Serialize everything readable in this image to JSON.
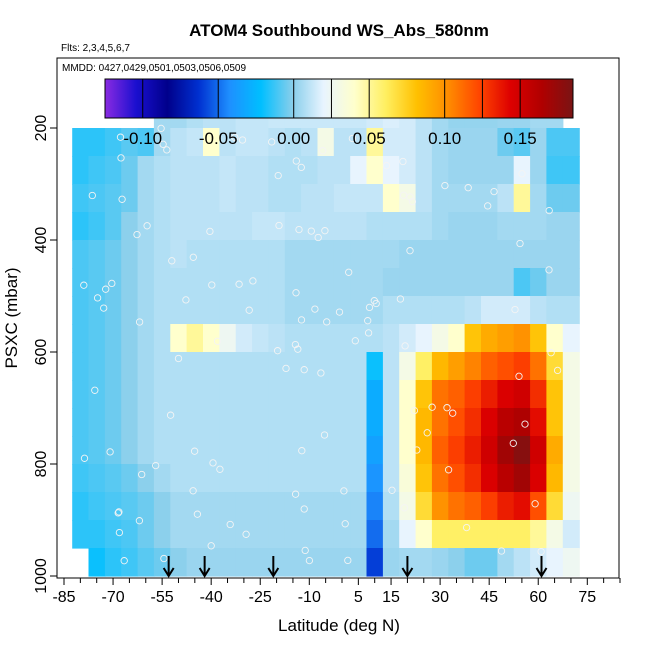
{
  "chart_data": {
    "type": "heatmap",
    "title": "ATOM4 Southbound WS_Abs_580nm",
    "subtitle_flights": "Flts: 2,3,4,5,6,7",
    "subtitle_dates": "MMDD: 0427,0429,0501,0503,0506,0509",
    "xlabel": "Latitude (deg N)",
    "ylabel": "PSXC (mbar)",
    "xlim": [
      -85,
      85
    ],
    "ylim": [
      1000,
      100
    ],
    "x_ticks": [
      -85,
      -70,
      -55,
      -40,
      -25,
      -10,
      5,
      15,
      30,
      45,
      60,
      75
    ],
    "x_tick_labels": [
      "-85",
      "-70",
      "-55",
      "-40",
      "-25",
      "-10",
      "5",
      "15",
      "30",
      "45",
      "60",
      "75"
    ],
    "x_minor_ticks": [
      -80,
      -75,
      -65,
      -60,
      -50,
      -45,
      -35,
      -30,
      -20,
      -15,
      -5,
      0,
      10,
      20,
      25,
      35,
      40,
      50,
      55,
      65,
      70,
      80,
      85
    ],
    "y_ticks": [
      200,
      400,
      600,
      800,
      1000
    ],
    "y_tick_labels": [
      "200",
      "400",
      "600",
      "800",
      "1000"
    ],
    "colorbar": {
      "range": [
        -0.125,
        0.185
      ],
      "ticks": [
        -0.1,
        -0.05,
        0.0,
        0.05,
        0.1,
        0.15
      ],
      "tick_labels": [
        "-0.10",
        "-0.05",
        "0.00",
        "0.05",
        "0.10",
        "0.15"
      ],
      "colors": [
        "#8a2be2",
        "#1a0fcf",
        "#00008b",
        "#0030d0",
        "#1e90ff",
        "#00bfff",
        "#87ceeb",
        "#e8f4ff",
        "#ffffcc",
        "#ffef60",
        "#ffc000",
        "#ff8c00",
        "#ff4500",
        "#dd0000",
        "#b00000",
        "#7a1414"
      ]
    },
    "ascent_arrows_lat": [
      -53,
      -42,
      -21,
      20,
      61
    ],
    "lat_bins": [
      -80,
      -75,
      -70,
      -65,
      -60,
      -55,
      -50,
      -45,
      -40,
      -35,
      -30,
      -25,
      -20,
      -15,
      -10,
      -5,
      0,
      5,
      10,
      15,
      20,
      25,
      30,
      35,
      40,
      45,
      50,
      55,
      60,
      65,
      70
    ],
    "pressure_bins": [
      175,
      225,
      275,
      325,
      375,
      425,
      475,
      525,
      575,
      625,
      675,
      725,
      775,
      825,
      875,
      925,
      975
    ],
    "values": [
      [
        null,
        null,
        null,
        null,
        null,
        0.005,
        0.005,
        0.008,
        0.01,
        0.01,
        0.012,
        0.012,
        0.013,
        0.013,
        0.013,
        0.013,
        0.013,
        0.013,
        0.015,
        0.017,
        0.015,
        0.01,
        0.005,
        0.002,
        0.002,
        0.002,
        0.003,
        0.003,
        0.005,
        0.005,
        null
      ],
      [
        -0.015,
        -0.015,
        -0.012,
        -0.008,
        -0.01,
        0.005,
        0.01,
        0.012,
        0.04,
        0.01,
        0.012,
        0.012,
        0.01,
        0.008,
        0.01,
        0.03,
        0.01,
        0.01,
        0.05,
        0.015,
        0.015,
        0.01,
        0.005,
        0.003,
        0.003,
        0.003,
        -0.005,
        -0.008,
        0.003,
        -0.01,
        -0.01
      ],
      [
        -0.015,
        -0.012,
        -0.01,
        -0.005,
        0.005,
        0.008,
        0.01,
        0.01,
        0.01,
        0.012,
        0.01,
        0.01,
        0.008,
        0.008,
        0.008,
        0.01,
        0.01,
        0.02,
        0.04,
        0.02,
        0.015,
        0.01,
        0.005,
        0.003,
        0.003,
        0.003,
        0.003,
        0.02,
        0.003,
        -0.012,
        -0.012
      ],
      [
        -0.012,
        -0.01,
        -0.008,
        -0.005,
        0.005,
        0.008,
        0.01,
        0.01,
        0.01,
        0.012,
        0.01,
        0.01,
        0.008,
        0.008,
        0.01,
        0.01,
        0.012,
        0.012,
        0.012,
        0.04,
        0.03,
        0.01,
        0.005,
        0.005,
        0.005,
        0.005,
        0.01,
        0.05,
        0.005,
        -0.005,
        -0.005
      ],
      [
        -0.015,
        -0.012,
        -0.008,
        0.0,
        0.005,
        0.008,
        0.01,
        0.01,
        0.01,
        0.01,
        0.01,
        0.012,
        0.012,
        0.01,
        0.01,
        0.01,
        0.01,
        0.01,
        0.008,
        0.008,
        0.008,
        0.008,
        0.005,
        0.003,
        0.003,
        0.003,
        0.005,
        0.005,
        0.005,
        0.003,
        0.003
      ],
      [
        -0.01,
        -0.008,
        -0.005,
        0.0,
        0.005,
        0.008,
        0.01,
        0.008,
        0.008,
        0.008,
        0.008,
        0.008,
        0.008,
        0.005,
        0.005,
        0.005,
        0.005,
        0.005,
        0.005,
        0.005,
        0.003,
        0.003,
        0.003,
        0.003,
        0.003,
        0.003,
        0.003,
        0.003,
        0.003,
        0.003,
        0.003
      ],
      [
        -0.01,
        -0.008,
        -0.005,
        0.0,
        0.005,
        0.008,
        0.008,
        0.008,
        0.008,
        0.008,
        0.008,
        0.008,
        0.008,
        0.005,
        0.005,
        0.005,
        0.005,
        0.005,
        0.005,
        0.003,
        0.003,
        0.003,
        0.003,
        0.003,
        0.003,
        0.003,
        0.003,
        -0.01,
        -0.005,
        0.003,
        0.003
      ],
      [
        -0.01,
        -0.008,
        -0.005,
        0.0,
        0.005,
        0.008,
        0.008,
        0.008,
        0.008,
        0.008,
        0.008,
        0.008,
        0.008,
        0.005,
        0.005,
        0.005,
        0.005,
        0.005,
        0.005,
        0.008,
        0.008,
        0.008,
        0.008,
        0.008,
        0.01,
        0.015,
        0.015,
        0.015,
        0.01,
        0.008,
        0.008
      ],
      [
        -0.01,
        -0.008,
        -0.005,
        0.0,
        0.005,
        0.008,
        0.04,
        0.05,
        0.04,
        0.025,
        0.015,
        0.012,
        0.01,
        0.008,
        0.008,
        0.008,
        0.008,
        0.008,
        0.008,
        0.01,
        0.015,
        0.02,
        0.03,
        0.04,
        0.08,
        0.09,
        0.095,
        0.1,
        0.08,
        0.04,
        0.02
      ],
      [
        -0.01,
        -0.008,
        -0.005,
        0.0,
        0.005,
        0.008,
        0.008,
        0.008,
        0.008,
        0.008,
        0.008,
        0.008,
        0.008,
        0.008,
        0.008,
        0.008,
        0.008,
        0.008,
        -0.02,
        0.01,
        0.03,
        0.06,
        0.085,
        0.095,
        0.105,
        0.115,
        0.12,
        0.125,
        0.11,
        0.07,
        0.03
      ],
      [
        -0.01,
        -0.008,
        -0.005,
        0.0,
        0.005,
        0.008,
        0.008,
        0.008,
        0.008,
        0.008,
        0.008,
        0.008,
        0.008,
        0.008,
        0.008,
        0.008,
        0.008,
        0.008,
        -0.03,
        0.01,
        0.04,
        0.08,
        0.11,
        0.115,
        0.125,
        0.135,
        0.145,
        0.15,
        0.13,
        0.08,
        0.03
      ],
      [
        -0.01,
        -0.008,
        -0.005,
        0.0,
        0.005,
        0.008,
        0.008,
        0.008,
        0.008,
        0.008,
        0.008,
        0.008,
        0.008,
        0.008,
        0.008,
        0.008,
        0.008,
        0.008,
        -0.03,
        0.01,
        0.04,
        0.085,
        0.11,
        0.12,
        0.13,
        0.145,
        0.16,
        0.165,
        0.14,
        0.08,
        0.03
      ],
      [
        -0.01,
        -0.008,
        -0.005,
        0.0,
        0.005,
        0.008,
        0.008,
        0.008,
        0.008,
        0.008,
        0.008,
        0.008,
        0.008,
        0.008,
        0.008,
        0.008,
        0.008,
        0.008,
        -0.035,
        0.01,
        0.04,
        0.085,
        0.115,
        0.125,
        0.135,
        0.15,
        0.17,
        0.18,
        0.15,
        0.09,
        0.03
      ],
      [
        -0.012,
        -0.01,
        -0.008,
        -0.005,
        0.0,
        0.005,
        0.008,
        0.008,
        0.008,
        0.008,
        0.008,
        0.008,
        0.008,
        0.008,
        0.008,
        0.008,
        0.008,
        0.008,
        -0.04,
        0.01,
        0.035,
        0.08,
        0.11,
        0.12,
        0.13,
        0.145,
        0.16,
        0.17,
        0.145,
        0.085,
        0.03
      ],
      [
        -0.015,
        -0.012,
        -0.01,
        -0.008,
        -0.005,
        0.0,
        0.005,
        0.005,
        0.005,
        0.005,
        0.005,
        0.005,
        0.005,
        0.005,
        0.005,
        0.005,
        0.005,
        0.005,
        -0.045,
        0.008,
        0.03,
        0.07,
        0.1,
        0.11,
        0.115,
        0.125,
        0.135,
        0.14,
        0.12,
        0.07,
        0.025
      ],
      [
        -0.015,
        -0.015,
        -0.012,
        -0.01,
        -0.005,
        0.0,
        0.005,
        0.005,
        0.005,
        0.005,
        0.005,
        0.005,
        0.005,
        0.005,
        0.005,
        0.005,
        0.005,
        0.005,
        -0.05,
        0.005,
        0.02,
        0.04,
        0.06,
        0.06,
        0.06,
        0.06,
        0.06,
        0.06,
        0.05,
        0.03,
        0.015
      ],
      [
        null,
        -0.02,
        -0.015,
        -0.012,
        -0.008,
        -0.005,
        0.0,
        0.003,
        0.003,
        0.003,
        0.003,
        0.003,
        0.003,
        0.003,
        0.003,
        0.003,
        0.003,
        0.003,
        -0.06,
        0.003,
        0.005,
        0.005,
        0.003,
        0.0,
        -0.005,
        -0.005,
        0.005,
        0.01,
        0.015,
        0.02,
        0.025
      ]
    ]
  }
}
